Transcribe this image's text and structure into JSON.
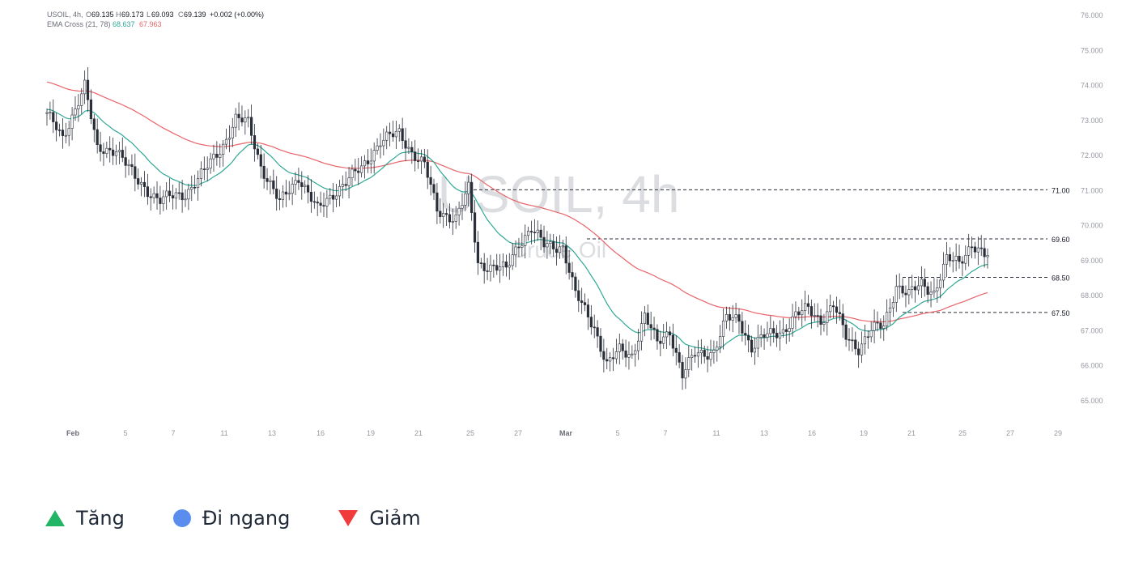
{
  "header": {
    "symbol": "USOIL, 4h,",
    "o_label": "O",
    "o_value": "69.135",
    "h_label": "H",
    "h_value": "69.173",
    "l_label": "L",
    "l_value": "69.093",
    "c_label": "C",
    "c_value": "69.139",
    "change": "+0.002 (+0.00%)",
    "indicator": "EMA Cross (21, 78)",
    "ema_fast_value": "68.637",
    "ema_slow_value": "67.963"
  },
  "watermark": {
    "title": "USOIL, 4h",
    "subtitle": "Crude Oil"
  },
  "colors": {
    "ema_fast": "#2fa896",
    "ema_slow": "#e8646a",
    "candle_up": "#ffffff",
    "candle_down": "#2a2e39",
    "up": "#22b565",
    "neutral": "#5b8def",
    "down": "#ef3b3b"
  },
  "chart_data": {
    "type": "candlestick",
    "title": "USOIL, 4h",
    "ylim": [
      65.0,
      76.0
    ],
    "y_ticks": [
      "76.000",
      "75.000",
      "74.000",
      "73.000",
      "72.000",
      "71.000",
      "70.000",
      "69.000",
      "68.000",
      "67.000",
      "66.000",
      "65.000"
    ],
    "x_tick_labels": [
      "Feb",
      "5",
      "7",
      "11",
      "13",
      "16",
      "19",
      "21",
      "25",
      "27",
      "Mar",
      "5",
      "7",
      "11",
      "13",
      "16",
      "19",
      "21",
      "25",
      "27",
      "29"
    ],
    "close_path": [
      {
        "i": 0,
        "v": 73.2
      },
      {
        "i": 5,
        "v": 72.4
      },
      {
        "i": 10,
        "v": 73.6
      },
      {
        "i": 12,
        "v": 74.0
      },
      {
        "i": 16,
        "v": 72.1
      },
      {
        "i": 22,
        "v": 72.2
      },
      {
        "i": 28,
        "v": 71.3
      },
      {
        "i": 36,
        "v": 70.7
      },
      {
        "i": 44,
        "v": 70.9
      },
      {
        "i": 50,
        "v": 71.5
      },
      {
        "i": 56,
        "v": 72.3
      },
      {
        "i": 60,
        "v": 73.0
      },
      {
        "i": 64,
        "v": 72.9
      },
      {
        "i": 68,
        "v": 71.7
      },
      {
        "i": 74,
        "v": 70.6
      },
      {
        "i": 80,
        "v": 71.4
      },
      {
        "i": 86,
        "v": 70.4
      },
      {
        "i": 92,
        "v": 71.0
      },
      {
        "i": 100,
        "v": 71.6
      },
      {
        "i": 106,
        "v": 72.4
      },
      {
        "i": 112,
        "v": 72.6
      },
      {
        "i": 116,
        "v": 72.1
      },
      {
        "i": 120,
        "v": 71.7
      },
      {
        "i": 124,
        "v": 70.4
      },
      {
        "i": 130,
        "v": 70.2
      },
      {
        "i": 134,
        "v": 71.0
      },
      {
        "i": 137,
        "v": 68.9
      },
      {
        "i": 142,
        "v": 68.8
      },
      {
        "i": 146,
        "v": 68.7
      },
      {
        "i": 150,
        "v": 69.5
      },
      {
        "i": 154,
        "v": 69.9
      },
      {
        "i": 158,
        "v": 69.4
      },
      {
        "i": 164,
        "v": 69.4
      },
      {
        "i": 168,
        "v": 68.0
      },
      {
        "i": 174,
        "v": 67.1
      },
      {
        "i": 178,
        "v": 66.0
      },
      {
        "i": 182,
        "v": 66.4
      },
      {
        "i": 186,
        "v": 66.3
      },
      {
        "i": 190,
        "v": 67.4
      },
      {
        "i": 194,
        "v": 66.6
      },
      {
        "i": 198,
        "v": 67.0
      },
      {
        "i": 202,
        "v": 65.7
      },
      {
        "i": 206,
        "v": 66.3
      },
      {
        "i": 212,
        "v": 66.4
      },
      {
        "i": 216,
        "v": 67.3
      },
      {
        "i": 220,
        "v": 67.3
      },
      {
        "i": 224,
        "v": 66.5
      },
      {
        "i": 228,
        "v": 66.8
      },
      {
        "i": 234,
        "v": 67.0
      },
      {
        "i": 238,
        "v": 67.4
      },
      {
        "i": 242,
        "v": 67.6
      },
      {
        "i": 246,
        "v": 67.3
      },
      {
        "i": 250,
        "v": 67.7
      },
      {
        "i": 254,
        "v": 66.8
      },
      {
        "i": 258,
        "v": 66.5
      },
      {
        "i": 262,
        "v": 67.0
      },
      {
        "i": 266,
        "v": 67.1
      },
      {
        "i": 270,
        "v": 68.3
      },
      {
        "i": 274,
        "v": 68.0
      },
      {
        "i": 278,
        "v": 68.3
      },
      {
        "i": 282,
        "v": 68.1
      },
      {
        "i": 286,
        "v": 69.0
      },
      {
        "i": 290,
        "v": 68.9
      },
      {
        "i": 294,
        "v": 69.5
      },
      {
        "i": 298,
        "v": 69.1
      }
    ],
    "ema_21_end": 68.637,
    "ema_78_end": 67.963,
    "horizontal_levels": [
      {
        "label": "71.00",
        "value": 71.0
      },
      {
        "label": "69.60",
        "value": 69.6
      },
      {
        "label": "68.50",
        "value": 68.5
      },
      {
        "label": "67.50",
        "value": 67.5
      }
    ]
  },
  "legend": {
    "up_label": "Tăng",
    "neutral_label": "Đi ngang",
    "down_label": "Giảm"
  }
}
